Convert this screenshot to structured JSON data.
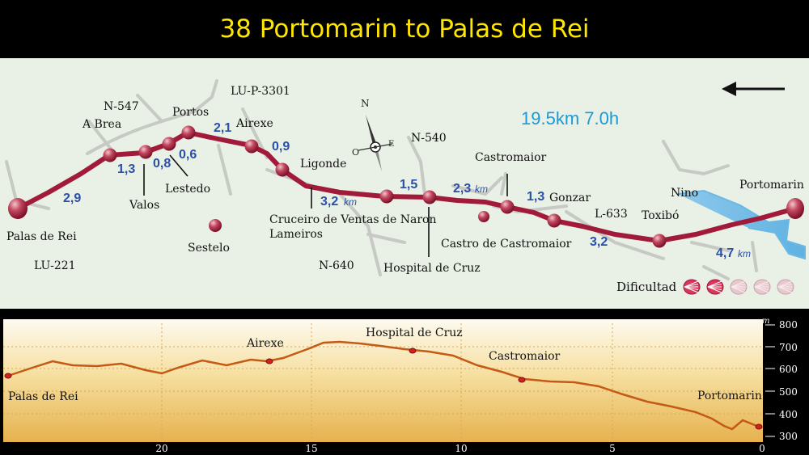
{
  "title": "38 Portomarin to Palas de Rei",
  "summary": "19.5km 7.0h",
  "map": {
    "roads": [
      "N-547",
      "LU-P-3301",
      "N-540",
      "LU-221",
      "N-640",
      "L-633"
    ],
    "river": "Nino",
    "places": [
      "Palas de Rei",
      "A Brea",
      "Valos",
      "Lestedo",
      "Portos",
      "Airexe",
      "Ligonde",
      "Sestelo",
      "Cruceiro de Ventas de Naron",
      "Lameiros",
      "Hospital de Cruz",
      "Castro de Castromaior",
      "Castromaior",
      "Gonzar",
      "Toxibó",
      "Portomarin"
    ],
    "distances": [
      "2,9",
      "1,3",
      "0,8",
      "0,6",
      "2,1",
      "0,9",
      "3,2",
      "1,5",
      "2,3",
      "1,3",
      "3,2",
      "4,7"
    ],
    "km_unit": "km",
    "compass": {
      "north": "N",
      "west": "O",
      "east": "E"
    },
    "difficulty_label": "Dificultad",
    "difficulty_level": 2,
    "difficulty_max": 5
  },
  "profile": {
    "unit": "m",
    "y_ticks": [
      "800",
      "700",
      "600",
      "500",
      "400",
      "300"
    ],
    "x_ticks": [
      "20",
      "15",
      "10",
      "5",
      "0"
    ],
    "labels": [
      "Palas de Rei",
      "Airexe",
      "Hospital de Cruz",
      "Castromaior",
      "Portomarin"
    ]
  },
  "colors": {
    "route": "#a21a3a",
    "distance": "#2a4fa8",
    "summary": "#1a9ad8",
    "title": "#ffe600",
    "profile_line": "#c45a15"
  }
}
